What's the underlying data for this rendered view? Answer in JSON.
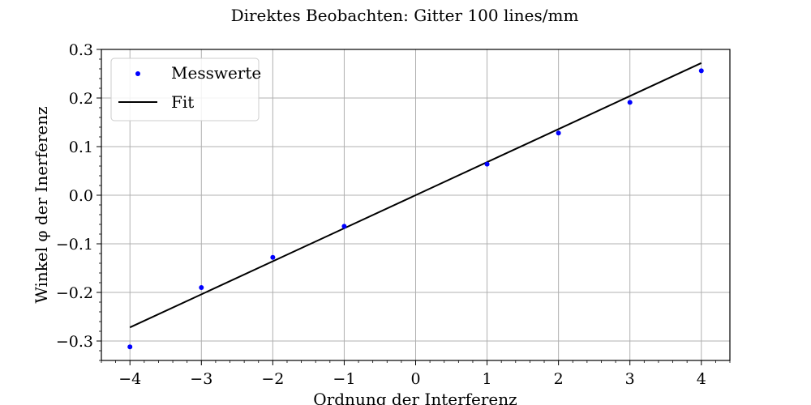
{
  "chart_data": {
    "type": "scatter",
    "title": "Direktes Beobachten: Gitter 100 lines/mm",
    "xlabel": "Ordnung der Interferenz",
    "ylabel": "Winkel φ der Inerferenz",
    "xlim": [
      -4.4,
      4.4
    ],
    "ylim": [
      -0.34,
      0.3
    ],
    "xticks": [
      -4,
      -3,
      -2,
      -1,
      0,
      1,
      2,
      3,
      4
    ],
    "xtick_labels": [
      "−4",
      "−3",
      "−2",
      "−1",
      "0",
      "1",
      "2",
      "3",
      "4"
    ],
    "yticks": [
      -0.3,
      -0.2,
      -0.1,
      0.0,
      0.1,
      0.2,
      0.3
    ],
    "ytick_labels": [
      "−0.3",
      "−0.2",
      "−0.1",
      "0.0",
      "0.1",
      "0.2",
      "0.3"
    ],
    "grid": true,
    "legend_position": "top-left",
    "series": [
      {
        "name": "Messwerte",
        "kind": "points",
        "color": "#0000ff",
        "x": [
          -4,
          -3,
          -2,
          -1,
          1,
          2,
          3,
          4
        ],
        "y": [
          -0.312,
          -0.19,
          -0.128,
          -0.064,
          0.064,
          0.128,
          0.191,
          0.256
        ]
      },
      {
        "name": "Fit",
        "kind": "line",
        "color": "#000000",
        "x": [
          -4,
          4
        ],
        "y": [
          -0.272,
          0.272
        ]
      }
    ]
  }
}
